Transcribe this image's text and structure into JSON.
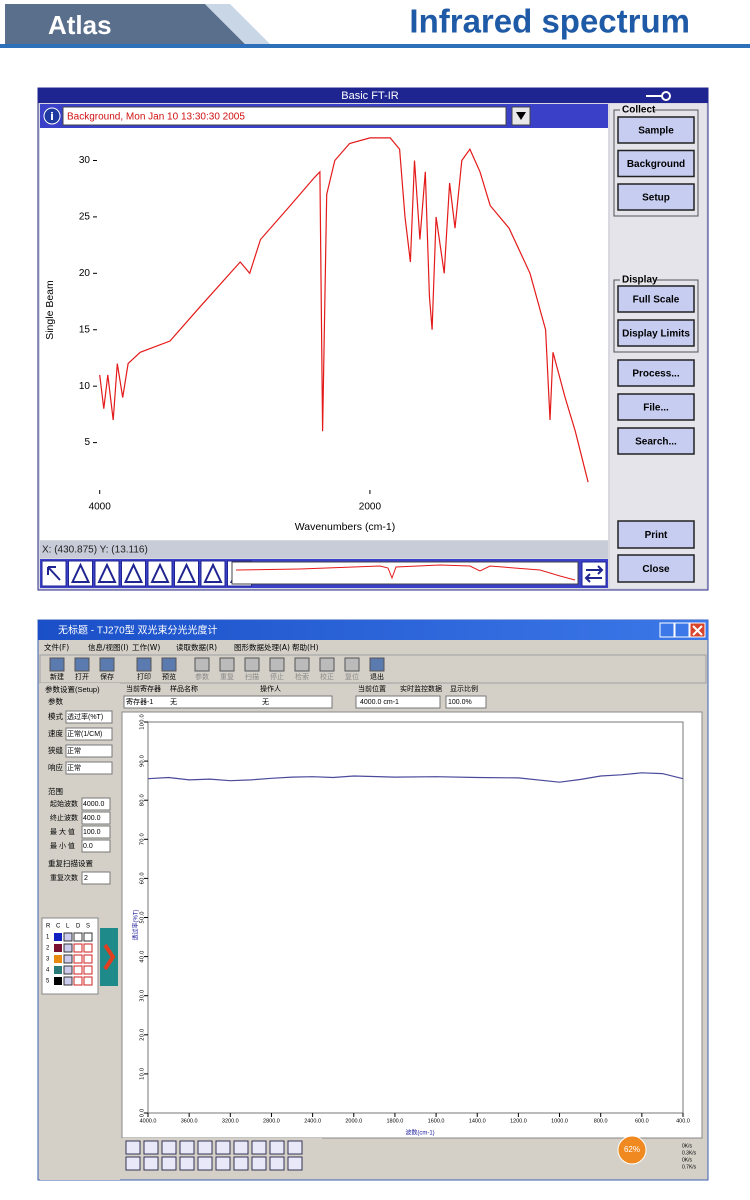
{
  "header": {
    "brand": "Atlas",
    "title": "Infrared spectrum"
  },
  "ftir": {
    "window_title": "Basic FT-IR",
    "file_label": "Background, Mon Jan 10 13:30:30 2005",
    "status": "X: (430.875) Y: (13.116)",
    "collect_group": "Collect",
    "collect_buttons": [
      "Sample",
      "Background",
      "Setup"
    ],
    "display_group": "Display",
    "display_buttons": [
      "Full Scale",
      "Display Limits"
    ],
    "other_buttons": [
      "Process...",
      "File...",
      "Search..."
    ],
    "bottom_buttons": [
      "Print",
      "Close"
    ]
  },
  "tj270": {
    "title": "无标题 - TJ270型 双光束分光光度计",
    "menu": [
      "文件(F)",
      "信息/视图(I)",
      "工作(W)",
      "读取数据(R)",
      "图形数据处理(A)",
      "帮助(H)"
    ],
    "toolbar": [
      "新建",
      "打开",
      "保存",
      "打印",
      "预览",
      "参数",
      "重复",
      "扫描",
      "停止",
      "检索",
      "校正",
      "复位",
      "退出"
    ],
    "tab": "参数设置(Setup)",
    "params_group": "参数",
    "params": [
      [
        "模式",
        "透过率(%T)"
      ],
      [
        "速度",
        "正常(1/CM)"
      ],
      [
        "狭缝",
        "正常"
      ],
      [
        "响应",
        "正常"
      ]
    ],
    "range_group": "范围",
    "range": [
      [
        "起始波数",
        "4000.0"
      ],
      [
        "终止波数",
        "400.0"
      ],
      [
        "最 大 值",
        "100.0"
      ],
      [
        "最 小 值",
        "0.0"
      ]
    ],
    "repeat_group": "重复扫描设置",
    "repeat": [
      "重复次数",
      "2"
    ],
    "layers_header": [
      "R",
      "C",
      "L",
      "D",
      "S"
    ],
    "layers": [
      "1",
      "2",
      "3",
      "4",
      "5"
    ],
    "info_headers": [
      "当前寄存器",
      "样品名称",
      "操作人",
      "当前位置",
      "实时监控数据",
      "显示比例"
    ],
    "info_values": [
      "寄存器-1",
      "无",
      "无",
      "4000.0 cm-1",
      "100.0%"
    ],
    "tray": {
      "cpu": "62%",
      "rates": [
        "0K/s",
        "0.3K/s",
        "0K/s",
        "0.7K/s"
      ]
    }
  },
  "chart_data": [
    {
      "type": "line",
      "x_label": "Wavenumbers (cm-1)",
      "y_label": "Single Beam",
      "color": "#e41a1a",
      "x": [
        4000,
        3970,
        3940,
        3900,
        3870,
        3830,
        3790,
        3700,
        3480,
        3260,
        2960,
        2890,
        2810,
        2590,
        2410,
        2370,
        2350,
        2320,
        2260,
        2150,
        2000,
        1850,
        1780,
        1740,
        1700,
        1670,
        1630,
        1590,
        1560,
        1540,
        1510,
        1450,
        1410,
        1370,
        1320,
        1260,
        1185,
        1110,
        970,
        815,
        700,
        667,
        645,
        555,
        480,
        385
      ],
      "values": [
        11,
        8,
        11,
        7,
        12,
        9,
        12,
        13,
        14,
        17,
        21,
        20,
        23,
        26,
        28.5,
        29,
        6,
        27,
        30,
        31.5,
        32,
        32,
        31,
        25,
        21,
        30,
        23,
        29,
        18,
        15,
        25,
        20,
        28,
        24,
        30,
        31,
        29,
        26,
        24,
        20,
        15,
        7,
        13,
        9,
        6,
        1.5
      ],
      "xlim": [
        4020,
        260
      ],
      "ylim": [
        0.8,
        32.7
      ],
      "xticks": [
        4000,
        2000
      ],
      "yticks": [
        5,
        10,
        15,
        20,
        25,
        30
      ]
    },
    {
      "type": "line",
      "x_label": "波数(cm-1)",
      "y_label": "透过率(%T)",
      "color": "#4a4a9c",
      "xscale": "piecewise",
      "x": [
        4000,
        3800,
        3600,
        3400,
        3200,
        3000,
        2800,
        2600,
        2400,
        2200,
        2000,
        1800,
        1600,
        1400,
        1200,
        1000,
        900,
        800,
        700,
        600,
        500,
        400
      ],
      "values": [
        85.5,
        85.8,
        85.2,
        85.4,
        85.0,
        85.2,
        85.6,
        85.9,
        86.0,
        85.8,
        86.2,
        85.9,
        86.0,
        85.8,
        85.7,
        84.6,
        85.3,
        86.2,
        86.5,
        87.0,
        86.8,
        85.5
      ],
      "xlim": [
        4000,
        400
      ],
      "ylim": [
        0,
        100
      ],
      "xticks": [
        {
          "value": 4000,
          "label": "4000.0"
        },
        {
          "value": 3600,
          "label": "3600.0"
        },
        {
          "value": 3200,
          "label": "3200.0"
        },
        {
          "value": 2800,
          "label": "2800.0"
        },
        {
          "value": 2400,
          "label": "2400.0"
        },
        {
          "value": 2000,
          "label": "2000.0"
        },
        {
          "value": 1800,
          "label": "1800.0"
        },
        {
          "value": 1600,
          "label": "1600.0"
        },
        {
          "value": 1400,
          "label": "1400.0"
        },
        {
          "value": 1200,
          "label": "1200.0"
        },
        {
          "value": 1000,
          "label": "1000.0"
        },
        {
          "value": 800,
          "label": "800.0"
        },
        {
          "value": 600,
          "label": "600.0"
        },
        {
          "value": 400,
          "label": "400.0"
        }
      ],
      "yticks": [
        {
          "value": 0,
          "label": "0.0"
        },
        {
          "value": 10,
          "label": "10.0"
        },
        {
          "value": 20,
          "label": "20.0"
        },
        {
          "value": 30,
          "label": "30.0"
        },
        {
          "value": 40,
          "label": "40.0"
        },
        {
          "value": 50,
          "label": "50.0"
        },
        {
          "value": 60,
          "label": "60.0"
        },
        {
          "value": 70,
          "label": "70.0"
        },
        {
          "value": 80,
          "label": "80.0"
        },
        {
          "value": 90,
          "label": "90.0"
        },
        {
          "value": 100,
          "label": "100.0"
        }
      ]
    }
  ]
}
